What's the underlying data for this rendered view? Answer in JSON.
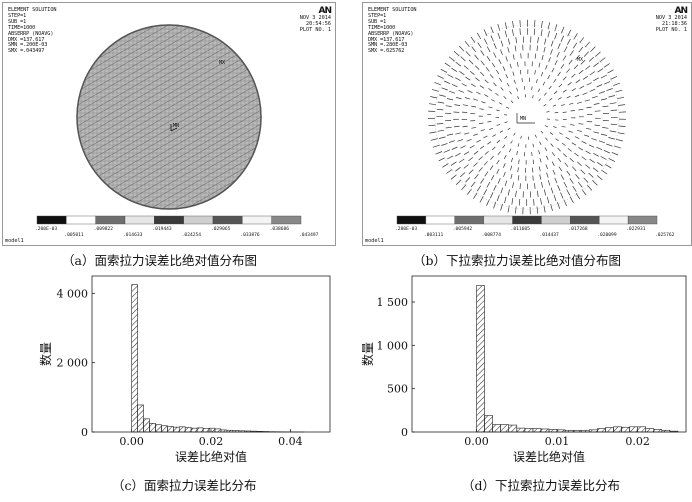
{
  "panels": [
    {
      "info": [
        "ELEMENT SOLUTION",
        "STEP=1",
        "SUB =1",
        "TIME=1000",
        "ABSERRP (NOAVG)",
        "DMX =137.617",
        "SMN =.200E-03",
        "SMX =.043497"
      ],
      "logo": "AN",
      "date": "NOV  3 2014",
      "time": "20:54:56",
      "plot": "PLOT NO.   1",
      "mx_label": "MX",
      "mn_label": "MN",
      "legend_colors": [
        "#111111",
        "#ffffff",
        "#6e6e6e",
        "#e6e6e6",
        "#3a3a3a",
        "#cfcfcf",
        "#555555",
        "#f4f4f4",
        "#888888"
      ],
      "legend_top": [
        ".200E-03",
        ".009822",
        ".019443",
        ".029065",
        ".038686"
      ],
      "legend_bottom": [
        ".005011",
        ".014633",
        ".024254",
        ".033876",
        ".043497"
      ],
      "model": "model1"
    },
    {
      "info": [
        "ELEMENT SOLUTION",
        "STEP=1",
        "SUB =1",
        "TIME=1000",
        "ABSERRP (NOAVG)",
        "DMX =137.617",
        "SMN =.280E-03",
        "SMX =.025762"
      ],
      "logo": "AN",
      "date": "NOV  3 2014",
      "time": "21:18:36",
      "plot": "PLOT NO.   1",
      "mx_label": "MX",
      "mn_label": "MN",
      "legend_colors": [
        "#111111",
        "#ffffff",
        "#6e6e6e",
        "#e6e6e6",
        "#3a3a3a",
        "#cfcfcf",
        "#555555",
        "#f4f4f4",
        "#888888"
      ],
      "legend_top": [
        ".280E-03",
        ".005942",
        ".011605",
        ".017268",
        ".022931"
      ],
      "legend_bottom": [
        ".003111",
        ".008774",
        ".014437",
        ".020099",
        ".025762"
      ],
      "model": "model1"
    }
  ],
  "captions": {
    "a": "（a）面索拉力误差比绝对值分布图",
    "b": "（b）下拉索拉力误差比绝对值分布图",
    "c": "（c）面索拉力误差比分布",
    "d": "（d）下拉索拉力误差比分布"
  },
  "chart_data": [
    {
      "type": "bar",
      "pattern": "diagonal-hatch",
      "xlabel": "误差比绝对值",
      "ylabel": "数量",
      "xlim": [
        -0.01,
        0.05
      ],
      "ylim": [
        0,
        4500
      ],
      "xticks": [
        0.0,
        0.02,
        0.04
      ],
      "xtick_labels": [
        "0.00",
        "0.02",
        "0.04"
      ],
      "yticks": [
        0,
        2000,
        4000
      ],
      "ytick_labels": [
        "0",
        "2 000",
        "4 000"
      ],
      "bin_width": 0.0015,
      "bins_start": [
        0.0,
        0.0015,
        0.003,
        0.0045,
        0.006,
        0.0075,
        0.009,
        0.0105,
        0.012,
        0.0135,
        0.015,
        0.0165,
        0.018,
        0.0195,
        0.021,
        0.0225,
        0.024,
        0.0255,
        0.027,
        0.0285,
        0.03,
        0.0315,
        0.033,
        0.0345,
        0.036,
        0.0375,
        0.039,
        0.0405,
        0.042
      ],
      "values": [
        4250,
        780,
        380,
        250,
        210,
        180,
        160,
        140,
        150,
        130,
        110,
        120,
        100,
        110,
        90,
        60,
        50,
        45,
        35,
        30,
        25,
        20,
        15,
        10,
        8,
        6,
        5,
        4,
        3
      ]
    },
    {
      "type": "bar",
      "pattern": "diagonal-hatch",
      "xlabel": "误差比绝对值",
      "ylabel": "数量",
      "xlim": [
        -0.008,
        0.026
      ],
      "ylim": [
        0,
        1800
      ],
      "xticks": [
        0.0,
        0.01,
        0.02
      ],
      "xtick_labels": [
        "0.00",
        "0.01",
        "0.02"
      ],
      "yticks": [
        0,
        500,
        1000,
        1500
      ],
      "ytick_labels": [
        "0",
        "500",
        "1 000",
        "1 500"
      ],
      "bin_width": 0.001,
      "bins_start": [
        0.0,
        0.001,
        0.002,
        0.003,
        0.004,
        0.005,
        0.006,
        0.007,
        0.008,
        0.009,
        0.01,
        0.011,
        0.012,
        0.013,
        0.014,
        0.015,
        0.016,
        0.017,
        0.018,
        0.019,
        0.02,
        0.021,
        0.022,
        0.023,
        0.024
      ],
      "values": [
        1690,
        190,
        85,
        85,
        80,
        45,
        40,
        40,
        35,
        30,
        25,
        20,
        18,
        20,
        25,
        40,
        50,
        60,
        55,
        60,
        60,
        40,
        30,
        20,
        10
      ]
    }
  ]
}
